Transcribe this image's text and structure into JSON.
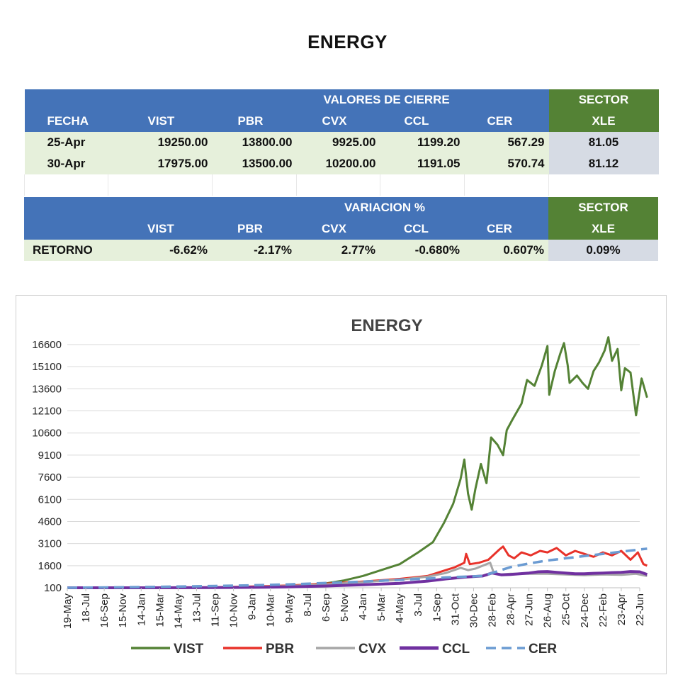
{
  "page_title": "ENERGY",
  "closing_table": {
    "group_header": "VALORES DE CIERRE",
    "sector_header": "SECTOR",
    "columns": [
      "FECHA",
      "VIST",
      "PBR",
      "CVX",
      "CCL",
      "CER"
    ],
    "sector_column": "XLE",
    "rows": [
      {
        "fecha": "25-Apr",
        "vist": "19250.00",
        "pbr": "13800.00",
        "cvx": "9925.00",
        "ccl": "1199.20",
        "cer": "567.29",
        "xle": "81.05"
      },
      {
        "fecha": "30-Apr",
        "vist": "17975.00",
        "pbr": "13500.00",
        "cvx": "10200.00",
        "ccl": "1191.05",
        "cer": "570.74",
        "xle": "81.12"
      }
    ]
  },
  "variation_table": {
    "group_header": "VARIACION %",
    "sector_header": "SECTOR",
    "columns": [
      "VIST",
      "PBR",
      "CVX",
      "CCL",
      "CER"
    ],
    "sector_column": "XLE",
    "row": {
      "label": "RETORNO",
      "vist": "-6.62%",
      "pbr": "-2.17%",
      "cvx": "2.77%",
      "ccl": "-0.680%",
      "cer": "0.607%",
      "xle": "0.09%"
    }
  },
  "chart_data": {
    "type": "line",
    "title": "ENERGY",
    "xlabel": "",
    "ylabel": "",
    "ylim": [
      100,
      17500
    ],
    "y_ticks": [
      100,
      1600,
      3100,
      4600,
      6100,
      7600,
      9100,
      10600,
      12100,
      13600,
      15100,
      16600
    ],
    "x_ticks": [
      "19-May",
      "18-Jul",
      "16-Sep",
      "15-Nov",
      "14-Jan",
      "15-Mar",
      "14-May",
      "13-Jul",
      "11-Sep",
      "10-Nov",
      "9-Jan",
      "10-Mar",
      "9-May",
      "8-Jul",
      "6-Sep",
      "5-Nov",
      "4-Jan",
      "5-Mar",
      "4-May",
      "3-Jul",
      "1-Sep",
      "31-Oct",
      "30-Dec",
      "28-Feb",
      "28-Apr",
      "27-Jun",
      "26-Aug",
      "25-Oct",
      "24-Dec",
      "22-Feb",
      "23-Apr",
      "22-Jun"
    ],
    "grid": "horizontal",
    "legend_position": "bottom",
    "series": [
      {
        "name": "VIST",
        "color": "#548235",
        "style": "solid",
        "points": [
          [
            0,
            100
          ],
          [
            2,
            100
          ],
          [
            4,
            110
          ],
          [
            6,
            110
          ],
          [
            8,
            120
          ],
          [
            9,
            130
          ],
          [
            10,
            160
          ],
          [
            11,
            200
          ],
          [
            12,
            250
          ],
          [
            13,
            300
          ],
          [
            14,
            400
          ],
          [
            15,
            600
          ],
          [
            16,
            900
          ],
          [
            17,
            1300
          ],
          [
            18,
            1700
          ],
          [
            19,
            2500
          ],
          [
            19.8,
            3200
          ],
          [
            20.4,
            4500
          ],
          [
            20.9,
            5800
          ],
          [
            21.3,
            7500
          ],
          [
            21.5,
            8800
          ],
          [
            21.7,
            6500
          ],
          [
            21.9,
            5400
          ],
          [
            22.1,
            6800
          ],
          [
            22.4,
            8500
          ],
          [
            22.7,
            7200
          ],
          [
            22.95,
            10300
          ],
          [
            23.3,
            9800
          ],
          [
            23.6,
            9100
          ],
          [
            23.8,
            10800
          ],
          [
            24.1,
            11500
          ],
          [
            24.6,
            12600
          ],
          [
            24.9,
            14200
          ],
          [
            25.3,
            13800
          ],
          [
            25.7,
            15200
          ],
          [
            26.0,
            16500
          ],
          [
            26.1,
            13200
          ],
          [
            26.4,
            14800
          ],
          [
            26.7,
            16000
          ],
          [
            26.9,
            16700
          ],
          [
            27.1,
            15200
          ],
          [
            27.2,
            14000
          ],
          [
            27.6,
            14500
          ],
          [
            27.9,
            14000
          ],
          [
            28.2,
            13600
          ],
          [
            28.5,
            14800
          ],
          [
            28.8,
            15400
          ],
          [
            29.1,
            16200
          ],
          [
            29.3,
            17100
          ],
          [
            29.5,
            15500
          ],
          [
            29.8,
            16300
          ],
          [
            30.0,
            13500
          ],
          [
            30.2,
            15000
          ],
          [
            30.5,
            14700
          ],
          [
            30.8,
            11800
          ],
          [
            31.1,
            14300
          ],
          [
            31.4,
            13000
          ]
        ]
      },
      {
        "name": "PBR",
        "color": "#e8322a",
        "style": "solid",
        "points": [
          [
            0,
            100
          ],
          [
            4,
            110
          ],
          [
            8,
            130
          ],
          [
            10,
            180
          ],
          [
            12,
            250
          ],
          [
            14,
            380
          ],
          [
            16,
            520
          ],
          [
            18,
            700
          ],
          [
            19.5,
            900
          ],
          [
            20.5,
            1300
          ],
          [
            21.0,
            1500
          ],
          [
            21.5,
            1800
          ],
          [
            21.6,
            2400
          ],
          [
            21.8,
            1700
          ],
          [
            22.3,
            1800
          ],
          [
            22.8,
            2000
          ],
          [
            23.4,
            2700
          ],
          [
            23.6,
            2900
          ],
          [
            23.9,
            2300
          ],
          [
            24.2,
            2100
          ],
          [
            24.6,
            2500
          ],
          [
            25.1,
            2300
          ],
          [
            25.6,
            2600
          ],
          [
            26.0,
            2500
          ],
          [
            26.5,
            2800
          ],
          [
            27.0,
            2300
          ],
          [
            27.5,
            2600
          ],
          [
            28.0,
            2400
          ],
          [
            28.5,
            2200
          ],
          [
            29.0,
            2500
          ],
          [
            29.5,
            2300
          ],
          [
            30.0,
            2600
          ],
          [
            30.5,
            2000
          ],
          [
            30.9,
            2500
          ],
          [
            31.2,
            1700
          ],
          [
            31.4,
            1600
          ]
        ]
      },
      {
        "name": "CVX",
        "color": "#a6a6a6",
        "style": "solid",
        "points": [
          [
            0,
            100
          ],
          [
            4,
            100
          ],
          [
            8,
            110
          ],
          [
            10,
            150
          ],
          [
            12,
            220
          ],
          [
            14,
            330
          ],
          [
            16,
            480
          ],
          [
            18,
            650
          ],
          [
            19.5,
            850
          ],
          [
            20.5,
            1100
          ],
          [
            21.3,
            1450
          ],
          [
            21.7,
            1300
          ],
          [
            22.1,
            1400
          ],
          [
            22.5,
            1600
          ],
          [
            22.9,
            1800
          ],
          [
            23.1,
            1100
          ],
          [
            23.5,
            1000
          ],
          [
            24.0,
            1050
          ],
          [
            25.0,
            1050
          ],
          [
            26.0,
            1050
          ],
          [
            27.0,
            1000
          ],
          [
            28.0,
            950
          ],
          [
            29.0,
            1000
          ],
          [
            30.0,
            980
          ],
          [
            30.8,
            1050
          ],
          [
            31.4,
            900
          ]
        ]
      },
      {
        "name": "CCL",
        "color": "#7030a0",
        "style": "solid",
        "points": [
          [
            0,
            100
          ],
          [
            4,
            100
          ],
          [
            8,
            110
          ],
          [
            10,
            130
          ],
          [
            12,
            160
          ],
          [
            14,
            220
          ],
          [
            16,
            300
          ],
          [
            18,
            400
          ],
          [
            19.5,
            550
          ],
          [
            20.5,
            700
          ],
          [
            21.5,
            820
          ],
          [
            22.5,
            900
          ],
          [
            23.0,
            1100
          ],
          [
            23.5,
            980
          ],
          [
            24.0,
            1000
          ],
          [
            24.5,
            1050
          ],
          [
            25.0,
            1100
          ],
          [
            25.5,
            1180
          ],
          [
            26.0,
            1200
          ],
          [
            26.5,
            1150
          ],
          [
            27.0,
            1100
          ],
          [
            27.5,
            1050
          ],
          [
            28.0,
            1050
          ],
          [
            28.5,
            1080
          ],
          [
            29.0,
            1100
          ],
          [
            29.5,
            1130
          ],
          [
            30.0,
            1150
          ],
          [
            30.5,
            1200
          ],
          [
            31.0,
            1180
          ],
          [
            31.4,
            1000
          ]
        ]
      },
      {
        "name": "CER",
        "color": "#6b9bd2",
        "style": "dashed",
        "points": [
          [
            0,
            100
          ],
          [
            4,
            150
          ],
          [
            8,
            220
          ],
          [
            10,
            270
          ],
          [
            12,
            330
          ],
          [
            14,
            420
          ],
          [
            16,
            520
          ],
          [
            18,
            640
          ],
          [
            19.5,
            720
          ],
          [
            20.5,
            800
          ],
          [
            21.5,
            850
          ],
          [
            22.5,
            900
          ],
          [
            23.0,
            1100
          ],
          [
            24.0,
            1500
          ],
          [
            25.0,
            1750
          ],
          [
            26.0,
            1950
          ],
          [
            27.0,
            2100
          ],
          [
            28.0,
            2250
          ],
          [
            29.0,
            2400
          ],
          [
            30.0,
            2550
          ],
          [
            31.0,
            2700
          ],
          [
            31.4,
            2750
          ]
        ]
      }
    ]
  }
}
